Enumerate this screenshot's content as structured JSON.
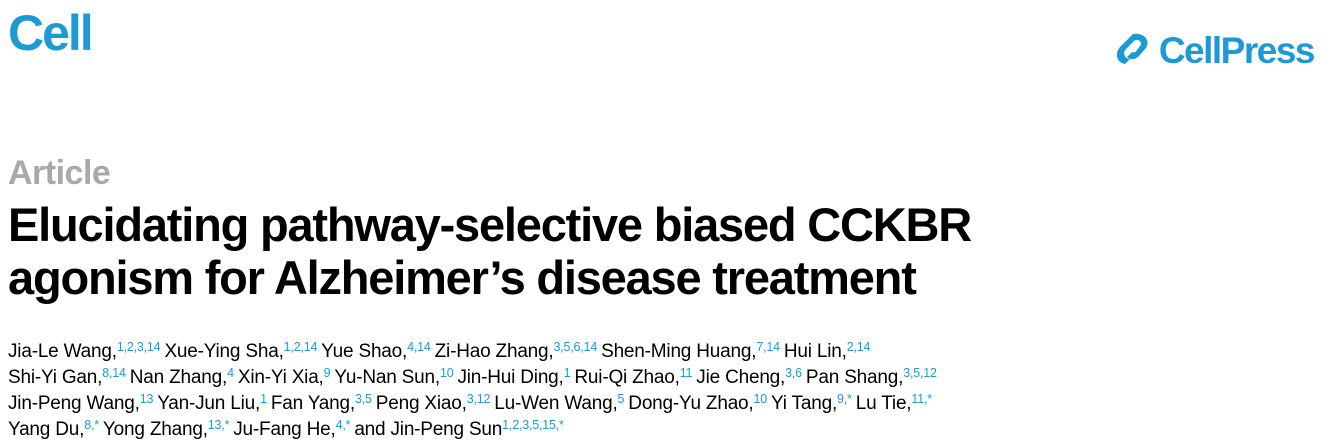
{
  "header": {
    "journal": "Cell",
    "publisher": "CellPress",
    "brand_color": "#1b9ad6",
    "publisher_icon": "cellpress-logo-icon"
  },
  "article": {
    "type": "Article",
    "title_lines": [
      "Elucidating pathway-selective biased CCKBR",
      "agonism for Alzheimer’s disease treatment"
    ]
  },
  "authors": {
    "lines": [
      [
        {
          "name": "Jia-Le Wang,",
          "sup": "1,2,3,14"
        },
        {
          "name": "Xue-Ying Sha,",
          "sup": "1,2,14"
        },
        {
          "name": "Yue Shao,",
          "sup": "4,14"
        },
        {
          "name": "Zi-Hao Zhang,",
          "sup": "3,5,6,14"
        },
        {
          "name": "Shen-Ming Huang,",
          "sup": "7,14"
        },
        {
          "name": "Hui Lin,",
          "sup": "2,14"
        }
      ],
      [
        {
          "name": "Shi-Yi Gan,",
          "sup": "8,14"
        },
        {
          "name": "Nan Zhang,",
          "sup": "4"
        },
        {
          "name": "Xin-Yi Xia,",
          "sup": "9"
        },
        {
          "name": "Yu-Nan Sun,",
          "sup": "10"
        },
        {
          "name": "Jin-Hui Ding,",
          "sup": "1"
        },
        {
          "name": "Rui-Qi Zhao,",
          "sup": "11"
        },
        {
          "name": "Jie Cheng,",
          "sup": "3,6"
        },
        {
          "name": "Pan Shang,",
          "sup": "3,5,12"
        }
      ],
      [
        {
          "name": "Jin-Peng Wang,",
          "sup": "13"
        },
        {
          "name": "Yan-Jun Liu,",
          "sup": "1"
        },
        {
          "name": "Fan Yang,",
          "sup": "3,5"
        },
        {
          "name": "Peng Xiao,",
          "sup": "3,12"
        },
        {
          "name": "Lu-Wen Wang,",
          "sup": "5"
        },
        {
          "name": "Dong-Yu Zhao,",
          "sup": "10"
        },
        {
          "name": "Yi Tang,",
          "sup": "9,*"
        },
        {
          "name": "Lu Tie,",
          "sup": "11,*"
        }
      ],
      [
        {
          "name": "Yang Du,",
          "sup": "8,*"
        },
        {
          "name": "Yong Zhang,",
          "sup": "13,*"
        },
        {
          "name": "Ju-Fang He,",
          "sup": "4,*"
        },
        {
          "name": "and Jin-Peng Sun",
          "sup": "1,2,3,5,15,*"
        }
      ]
    ]
  }
}
